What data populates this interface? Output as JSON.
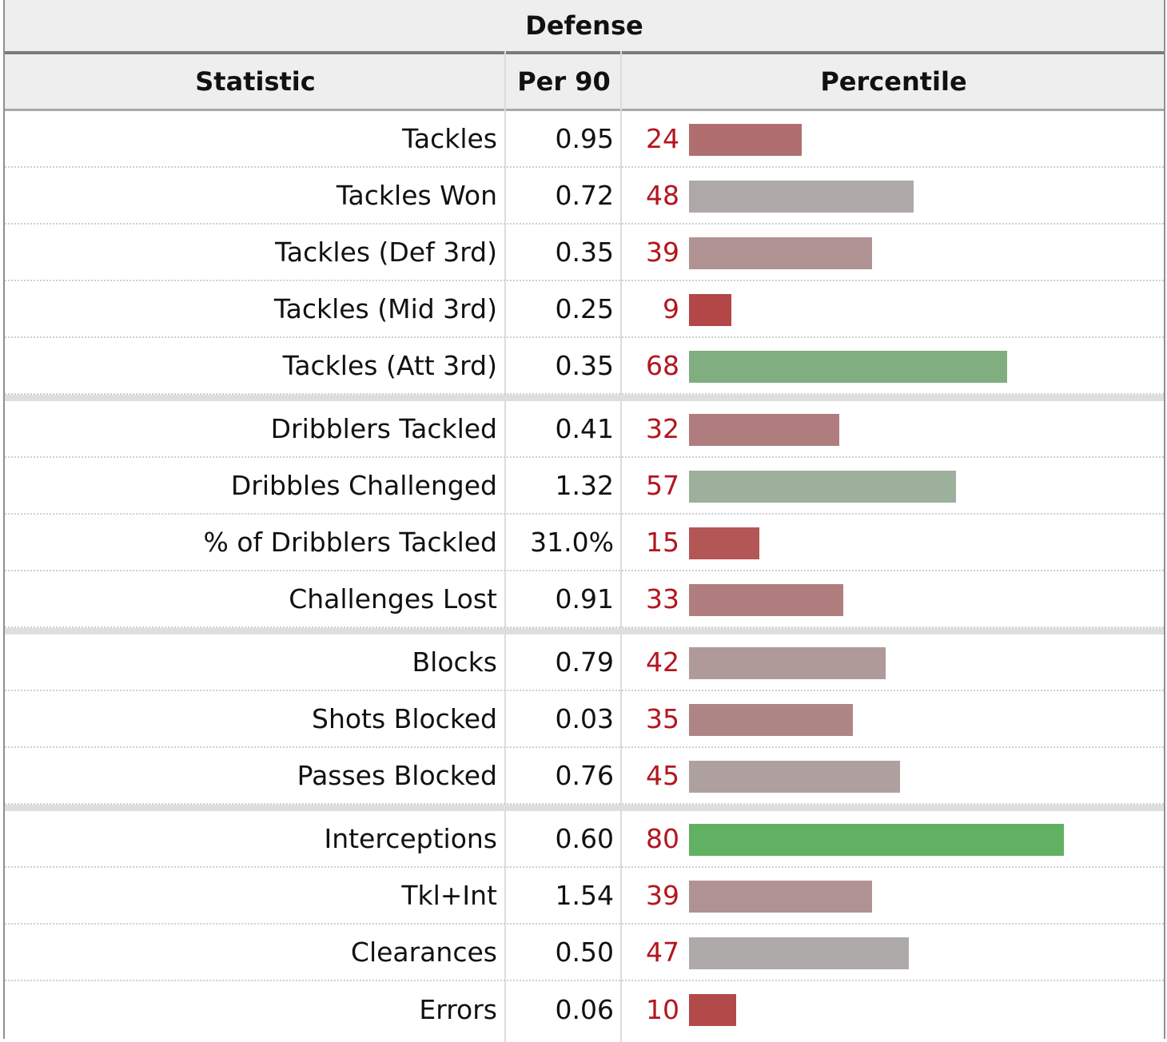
{
  "title": "Defense",
  "columns": {
    "statistic": "Statistic",
    "per90": "Per 90",
    "percentile": "Percentile"
  },
  "chart_data": {
    "type": "bar",
    "orientation": "horizontal",
    "title": "Defense",
    "xlabel": "Percentile",
    "xlim": [
      0,
      100
    ],
    "groups": [
      [
        {
          "label": "Tackles",
          "per90": "0.95",
          "percentile": 24,
          "color": "#b06e6e"
        },
        {
          "label": "Tackles Won",
          "per90": "0.72",
          "percentile": 48,
          "color": "#aea9a8"
        },
        {
          "label": "Tackles (Def 3rd)",
          "per90": "0.35",
          "percentile": 39,
          "color": "#b09292"
        },
        {
          "label": "Tackles (Mid 3rd)",
          "per90": "0.25",
          "percentile": 9,
          "color": "#b34646"
        },
        {
          "label": "Tackles (Att 3rd)",
          "per90": "0.35",
          "percentile": 68,
          "color": "#80ae80"
        }
      ],
      [
        {
          "label": "Dribblers Tackled",
          "per90": "0.41",
          "percentile": 32,
          "color": "#af7d7d"
        },
        {
          "label": "Dribbles Challenged",
          "per90": "1.32",
          "percentile": 57,
          "color": "#9db09b"
        },
        {
          "label": "% of Dribblers Tackled",
          "per90": "31.0%",
          "percentile": 15,
          "color": "#b35656"
        },
        {
          "label": "Challenges Lost",
          "per90": "0.91",
          "percentile": 33,
          "color": "#b07e7e"
        }
      ],
      [
        {
          "label": "Blocks",
          "per90": "0.79",
          "percentile": 42,
          "color": "#b09999"
        },
        {
          "label": "Shots Blocked",
          "per90": "0.03",
          "percentile": 35,
          "color": "#ae8585"
        },
        {
          "label": "Passes Blocked",
          "per90": "0.76",
          "percentile": 45,
          "color": "#afa0a0"
        }
      ],
      [
        {
          "label": "Interceptions",
          "per90": "0.60",
          "percentile": 80,
          "color": "#62b062"
        },
        {
          "label": "Tkl+Int",
          "per90": "1.54",
          "percentile": 39,
          "color": "#b09292"
        },
        {
          "label": "Clearances",
          "per90": "0.50",
          "percentile": 47,
          "color": "#aeaaaa"
        },
        {
          "label": "Errors",
          "per90": "0.06",
          "percentile": 10,
          "color": "#b34a4a"
        }
      ]
    ]
  }
}
